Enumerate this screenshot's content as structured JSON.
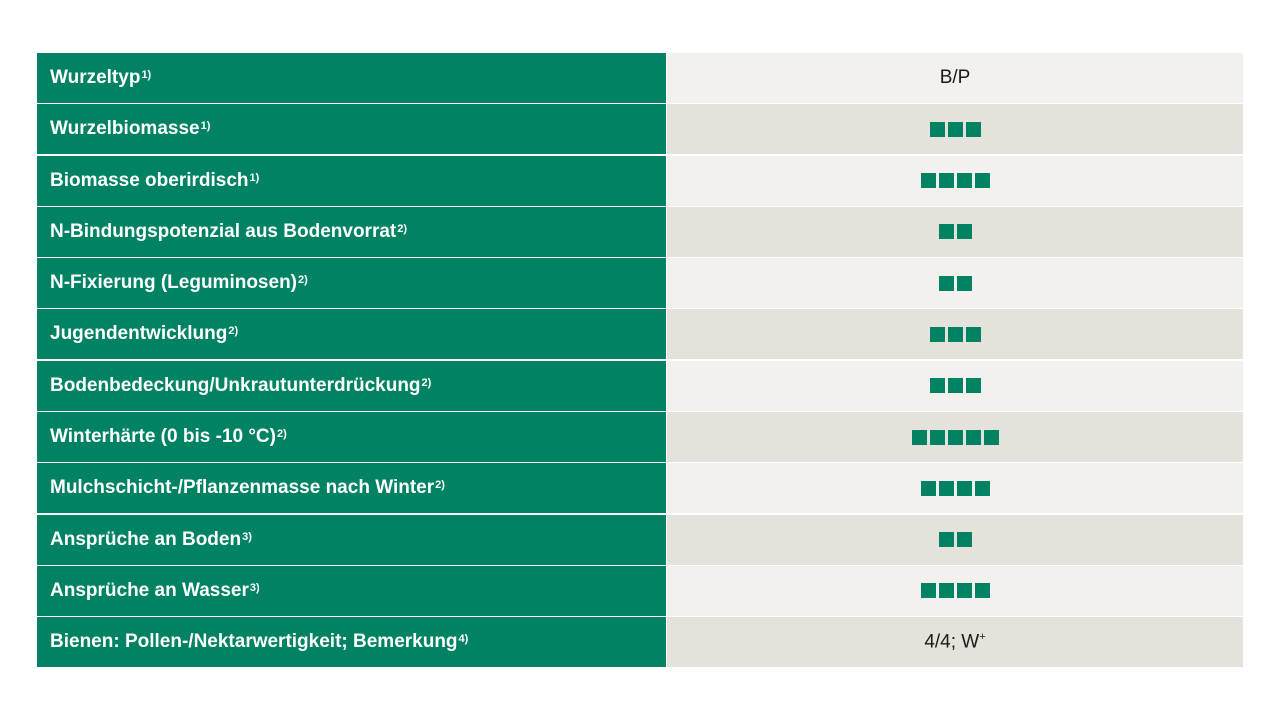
{
  "colors": {
    "label_bg": "#008263",
    "square": "#008263",
    "row_light": "#f2f1ee",
    "row_dark": "#e5e1db"
  },
  "rows": [
    {
      "label": "Wurzeltyp",
      "note": "1)",
      "type": "text",
      "value": "B/P"
    },
    {
      "label": "Wurzelbiomasse",
      "note": "1)",
      "type": "rating",
      "rating": 3
    },
    {
      "label": "Biomasse oberirdisch",
      "note": "1)",
      "type": "rating",
      "rating": 4
    },
    {
      "label": "N-Bindungspotenzial aus Bodenvorrat",
      "note": "2)",
      "type": "rating",
      "rating": 2
    },
    {
      "label": "N-Fixierung (Leguminosen)",
      "note": "2)",
      "type": "rating",
      "rating": 2
    },
    {
      "label": "Jugendentwicklung",
      "note": "2)",
      "type": "rating",
      "rating": 3
    },
    {
      "label": "Bodenbedeckung/Unkrautunterdrückung",
      "note": "2)",
      "type": "rating",
      "rating": 3
    },
    {
      "label": "Winterhärte (0 bis -10 °C)",
      "note": "2)",
      "type": "rating",
      "rating": 5
    },
    {
      "label": "Mulchschicht-/Pflanzenmasse nach Winter",
      "note": "2)",
      "type": "rating",
      "rating": 4
    },
    {
      "label": "Ansprüche an Boden",
      "note": "3)",
      "type": "rating",
      "rating": 2
    },
    {
      "label": "Ansprüche an Wasser",
      "note": "3)",
      "type": "rating",
      "rating": 4
    },
    {
      "label": "Bienen: Pollen-/Nektarwertigkeit; Bemerkung",
      "note": "4)",
      "type": "text",
      "value": "4/4; W",
      "value_sup": "+"
    }
  ]
}
